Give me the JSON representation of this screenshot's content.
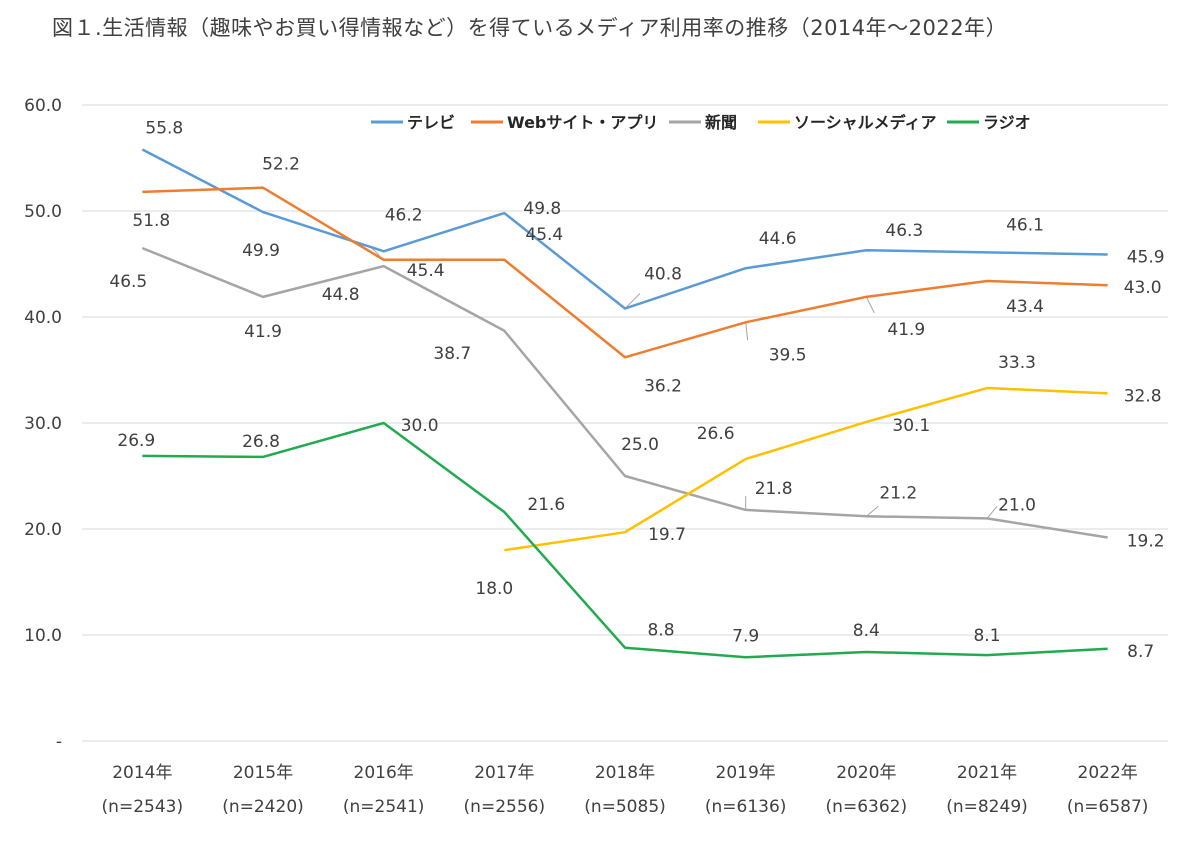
{
  "chart_data": {
    "type": "line",
    "title": "図１.生活情報（趣味やお買い得情報など）を得ているメディア利用率の推移（2014年～2022年）",
    "xlabel": "",
    "ylabel": "",
    "ylim": [
      0,
      60
    ],
    "y_ticks": [
      "-",
      "10.0",
      "20.0",
      "30.0",
      "40.0",
      "50.0",
      "60.0"
    ],
    "grid": true,
    "legend_position": "top-right",
    "categories": [
      "2014年",
      "2015年",
      "2016年",
      "2017年",
      "2018年",
      "2019年",
      "2020年",
      "2021年",
      "2022年"
    ],
    "category_sublabels": [
      "(n=2543)",
      "(n=2420)",
      "(n=2541)",
      "(n=2556)",
      "(n=5085)",
      "(n=6136)",
      "(n=6362)",
      "(n=8249)",
      "(n=6587)"
    ],
    "series": [
      {
        "name": "テレビ",
        "color": "#5B9BD5",
        "values": [
          55.8,
          49.9,
          46.2,
          49.8,
          40.8,
          44.6,
          46.3,
          46.1,
          45.9
        ],
        "labels": [
          "55.8",
          "49.9",
          "46.2",
          "49.8",
          "40.8",
          "44.6",
          "46.3",
          "46.1",
          "45.9"
        ]
      },
      {
        "name": "Webサイト・アプリ",
        "color": "#ED7D31",
        "values": [
          51.8,
          52.2,
          45.4,
          45.4,
          36.2,
          39.5,
          41.9,
          43.4,
          43.0
        ],
        "labels": [
          "51.8",
          "52.2",
          "45.4",
          "45.4",
          "36.2",
          "39.5",
          "41.9",
          "43.4",
          "43.0"
        ]
      },
      {
        "name": "新聞",
        "color": "#A5A5A5",
        "values": [
          46.5,
          41.9,
          44.8,
          38.7,
          25.0,
          21.8,
          21.2,
          21.0,
          19.2
        ],
        "labels": [
          "46.5",
          "41.9",
          "44.8",
          "38.7",
          "25.0",
          "21.8",
          "21.2",
          "21.0",
          "19.2"
        ]
      },
      {
        "name": "ソーシャルメディア",
        "color": "#FFC000",
        "values": [
          null,
          null,
          null,
          18.0,
          19.7,
          26.6,
          30.1,
          33.3,
          32.8
        ],
        "labels": [
          null,
          null,
          null,
          "18.0",
          "19.7",
          "26.6",
          "30.1",
          "33.3",
          "32.8"
        ]
      },
      {
        "name": "ラジオ",
        "color": "#22AA50",
        "values": [
          26.9,
          26.8,
          30.0,
          21.6,
          8.8,
          7.9,
          8.4,
          8.1,
          8.7
        ],
        "labels": [
          "26.9",
          "26.8",
          "30.0",
          "21.6",
          "8.8",
          "7.9",
          "8.4",
          "8.1",
          "8.7"
        ]
      }
    ]
  }
}
